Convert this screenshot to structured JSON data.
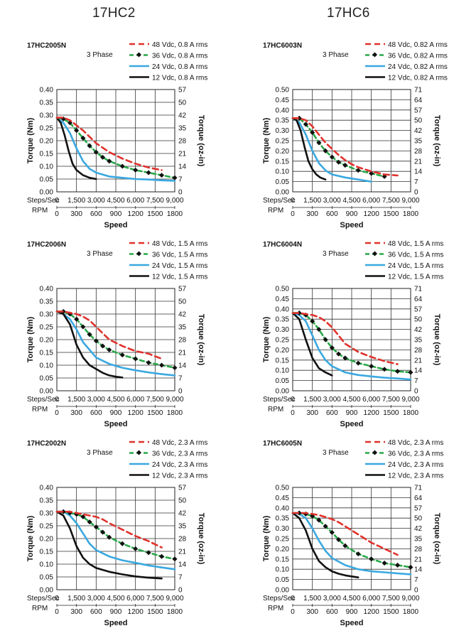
{
  "columns": [
    "17HC2",
    "17HC6"
  ],
  "common": {
    "phase_label": "3 Phase",
    "y_left_label": "Torque (Nm)",
    "y_right_label": "Torque (oz-in)",
    "x_label": "Speed",
    "steps_label": "Steps/Sec",
    "rpm_label": "RPM",
    "x_steps_ticks": [
      "0",
      "1,500",
      "3,000",
      "4,500",
      "6,000",
      "7,500",
      "9,000"
    ],
    "x_rpm_ticks": [
      "0",
      "300",
      "600",
      "900",
      "1200",
      "1500",
      "1800"
    ]
  },
  "colors": {
    "48": "#e0322c",
    "36": "#2aa84a",
    "24": "#3aa8e0",
    "12": "#111111",
    "marker": "#111111"
  },
  "chart_data": [
    {
      "type": "line",
      "title": "17HC2005N",
      "column": 0,
      "row": 0,
      "ylim": [
        0,
        0.4
      ],
      "y_ticks": [
        "0.00",
        "0.05",
        "0.10",
        "0.15",
        "0.20",
        "0.25",
        "0.30",
        "0.35",
        "0.40"
      ],
      "y_right_ticks": [
        "0",
        "7",
        "14",
        "21",
        "28",
        "35",
        "42",
        "50",
        "57"
      ],
      "xlim": [
        0,
        9000
      ],
      "series": [
        {
          "name": "48 Vdc, 0.8 A rms",
          "voltage": "48",
          "x": [
            0,
            500,
            1000,
            1500,
            2000,
            2500,
            3000,
            4000,
            5000,
            6000,
            7000,
            8000
          ],
          "y": [
            0.29,
            0.29,
            0.28,
            0.26,
            0.24,
            0.215,
            0.19,
            0.155,
            0.13,
            0.11,
            0.095,
            0.085
          ]
        },
        {
          "name": "36 Vdc, 0.8 A rms",
          "voltage": "36",
          "x": [
            0,
            500,
            1000,
            1500,
            2000,
            2500,
            3000,
            3500,
            4000,
            5000,
            6000,
            7000,
            8000,
            9000
          ],
          "y": [
            0.29,
            0.285,
            0.27,
            0.24,
            0.21,
            0.18,
            0.155,
            0.135,
            0.12,
            0.1,
            0.085,
            0.075,
            0.065,
            0.055
          ]
        },
        {
          "name": "24 Vdc, 0.8 A rms",
          "voltage": "24",
          "x": [
            0,
            500,
            1000,
            1500,
            2000,
            2500,
            3000,
            4000,
            5000,
            6000,
            7000,
            8000,
            9000
          ],
          "y": [
            0.29,
            0.27,
            0.23,
            0.17,
            0.12,
            0.09,
            0.075,
            0.06,
            0.055,
            0.05,
            0.048,
            0.045,
            0.043
          ]
        },
        {
          "name": "12 Vdc, 0.8 A rms",
          "voltage": "12",
          "x": [
            0,
            300,
            600,
            900,
            1200,
            1500,
            2000,
            2500,
            3000
          ],
          "y": [
            0.29,
            0.27,
            0.22,
            0.16,
            0.11,
            0.085,
            0.065,
            0.055,
            0.05
          ]
        }
      ]
    },
    {
      "type": "line",
      "title": "17HC6003N",
      "column": 1,
      "row": 0,
      "ylim": [
        0,
        0.5
      ],
      "y_ticks": [
        "0.00",
        "0.05",
        "0.10",
        "0.15",
        "0.20",
        "0.25",
        "0.30",
        "0.35",
        "0.40",
        "0.45",
        "0.50"
      ],
      "y_right_ticks": [
        "0",
        "7",
        "14",
        "21",
        "28",
        "35",
        "42",
        "50",
        "57",
        "64",
        "71"
      ],
      "xlim": [
        0,
        9000
      ],
      "series": [
        {
          "name": "48 Vdc, 0.82 A rms",
          "voltage": "48",
          "x": [
            0,
            500,
            1000,
            1500,
            2000,
            2500,
            3000,
            3500,
            4000,
            4500,
            5000,
            6000,
            7000,
            8000
          ],
          "y": [
            0.36,
            0.36,
            0.35,
            0.32,
            0.28,
            0.24,
            0.21,
            0.18,
            0.155,
            0.135,
            0.12,
            0.1,
            0.085,
            0.08
          ]
        },
        {
          "name": "36 Vdc, 0.82 A rms",
          "voltage": "36",
          "x": [
            0,
            500,
            1000,
            1500,
            2000,
            2500,
            3000,
            3500,
            4000,
            5000,
            6000,
            7000
          ],
          "y": [
            0.36,
            0.36,
            0.33,
            0.29,
            0.24,
            0.2,
            0.17,
            0.145,
            0.13,
            0.105,
            0.09,
            0.075
          ]
        },
        {
          "name": "24 Vdc, 0.82 A rms",
          "voltage": "24",
          "x": [
            0,
            500,
            1000,
            1500,
            2000,
            2500,
            3000,
            4000,
            5000,
            6000
          ],
          "y": [
            0.36,
            0.34,
            0.28,
            0.2,
            0.14,
            0.105,
            0.085,
            0.07,
            0.06,
            0.05
          ]
        },
        {
          "name": "12 Vdc, 0.82 A rms",
          "voltage": "12",
          "x": [
            0,
            300,
            600,
            900,
            1200,
            1500,
            1800,
            2100,
            2500
          ],
          "y": [
            0.36,
            0.35,
            0.3,
            0.22,
            0.15,
            0.11,
            0.085,
            0.07,
            0.06
          ]
        }
      ]
    },
    {
      "type": "line",
      "title": "17HC2006N",
      "column": 0,
      "row": 1,
      "ylim": [
        0,
        0.4
      ],
      "y_ticks": [
        "0.00",
        "0.05",
        "0.10",
        "0.15",
        "0.20",
        "0.25",
        "0.30",
        "0.35",
        "0.40"
      ],
      "y_right_ticks": [
        "0",
        "7",
        "14",
        "21",
        "28",
        "35",
        "42",
        "50",
        "57"
      ],
      "xlim": [
        0,
        9000
      ],
      "series": [
        {
          "name": "48 Vdc, 1.5 A rms",
          "voltage": "48",
          "x": [
            0,
            500,
            1000,
            1500,
            2000,
            2500,
            3000,
            3500,
            4000,
            5000,
            6000,
            7000,
            8000
          ],
          "y": [
            0.31,
            0.31,
            0.305,
            0.3,
            0.29,
            0.275,
            0.25,
            0.225,
            0.2,
            0.175,
            0.155,
            0.145,
            0.125
          ]
        },
        {
          "name": "36 Vdc, 1.5 A rms",
          "voltage": "36",
          "x": [
            0,
            500,
            1000,
            1500,
            2000,
            2500,
            3000,
            3500,
            4000,
            5000,
            6000,
            7000,
            8000,
            9000
          ],
          "y": [
            0.31,
            0.31,
            0.3,
            0.28,
            0.25,
            0.22,
            0.195,
            0.175,
            0.16,
            0.14,
            0.125,
            0.11,
            0.1,
            0.09
          ]
        },
        {
          "name": "24 Vdc, 1.5 A rms",
          "voltage": "24",
          "x": [
            0,
            500,
            1000,
            1500,
            2000,
            2500,
            3000,
            4000,
            5000,
            6000,
            7000,
            8000,
            9000
          ],
          "y": [
            0.31,
            0.3,
            0.28,
            0.24,
            0.19,
            0.16,
            0.13,
            0.105,
            0.09,
            0.08,
            0.072,
            0.065,
            0.06
          ]
        },
        {
          "name": "12 Vdc, 1.5 A rms",
          "voltage": "12",
          "x": [
            0,
            500,
            1000,
            1500,
            2000,
            2500,
            3000,
            3500,
            4000,
            4500,
            5000
          ],
          "y": [
            0.31,
            0.3,
            0.26,
            0.18,
            0.13,
            0.1,
            0.085,
            0.07,
            0.06,
            0.055,
            0.052
          ]
        }
      ]
    },
    {
      "type": "line",
      "title": "17HC6004N",
      "column": 1,
      "row": 1,
      "ylim": [
        0,
        0.5
      ],
      "y_ticks": [
        "0.00",
        "0.05",
        "0.10",
        "0.15",
        "0.20",
        "0.25",
        "0.30",
        "0.35",
        "0.40",
        "0.45",
        "0.50"
      ],
      "y_right_ticks": [
        "0",
        "7",
        "14",
        "21",
        "28",
        "35",
        "42",
        "50",
        "57",
        "64",
        "71"
      ],
      "xlim": [
        0,
        9000
      ],
      "series": [
        {
          "name": "48 Vdc, 1.5 A rms",
          "voltage": "48",
          "x": [
            0,
            500,
            1000,
            1500,
            2000,
            2500,
            3000,
            3500,
            4000,
            5000,
            6000,
            7000,
            8000
          ],
          "y": [
            0.38,
            0.38,
            0.375,
            0.37,
            0.36,
            0.34,
            0.31,
            0.27,
            0.23,
            0.19,
            0.165,
            0.145,
            0.13
          ]
        },
        {
          "name": "36 Vdc, 1.5 A rms",
          "voltage": "36",
          "x": [
            0,
            500,
            1000,
            1500,
            2000,
            2500,
            3000,
            3500,
            4000,
            5000,
            6000,
            7000,
            8000,
            9000
          ],
          "y": [
            0.38,
            0.38,
            0.37,
            0.34,
            0.3,
            0.25,
            0.21,
            0.18,
            0.16,
            0.135,
            0.12,
            0.105,
            0.095,
            0.09
          ]
        },
        {
          "name": "24 Vdc, 1.5 A rms",
          "voltage": "24",
          "x": [
            0,
            500,
            1000,
            1500,
            2000,
            2500,
            3000,
            4000,
            5000,
            6000,
            7000,
            8000,
            9000
          ],
          "y": [
            0.38,
            0.37,
            0.34,
            0.27,
            0.2,
            0.15,
            0.12,
            0.09,
            0.077,
            0.07,
            0.064,
            0.06,
            0.055
          ]
        },
        {
          "name": "12 Vdc, 1.5 A rms",
          "voltage": "12",
          "x": [
            0,
            500,
            1000,
            1500,
            2000,
            2500,
            3000
          ],
          "y": [
            0.38,
            0.35,
            0.25,
            0.16,
            0.11,
            0.09,
            0.075
          ]
        }
      ]
    },
    {
      "type": "line",
      "title": "17HC2002N",
      "column": 0,
      "row": 2,
      "ylim": [
        0,
        0.4
      ],
      "y_ticks": [
        "0.00",
        "0.05",
        "0.10",
        "0.15",
        "0.20",
        "0.25",
        "0.30",
        "0.35",
        "0.40"
      ],
      "y_right_ticks": [
        "0",
        "7",
        "14",
        "21",
        "28",
        "35",
        "42",
        "50",
        "57"
      ],
      "xlim": [
        0,
        9000
      ],
      "series": [
        {
          "name": "48 Vdc, 2.3 A rms",
          "voltage": "48",
          "x": [
            0,
            500,
            1000,
            1500,
            2000,
            2500,
            3000,
            3500,
            4000,
            5000,
            6000,
            7000,
            8000
          ],
          "y": [
            0.305,
            0.305,
            0.305,
            0.3,
            0.295,
            0.29,
            0.285,
            0.275,
            0.26,
            0.235,
            0.21,
            0.19,
            0.165
          ]
        },
        {
          "name": "36 Vdc, 2.3 A rms",
          "voltage": "36",
          "x": [
            0,
            500,
            1000,
            1500,
            2000,
            2500,
            3000,
            3500,
            4000,
            5000,
            6000,
            7000,
            8000,
            9000
          ],
          "y": [
            0.305,
            0.305,
            0.3,
            0.295,
            0.285,
            0.265,
            0.245,
            0.225,
            0.205,
            0.18,
            0.16,
            0.145,
            0.13,
            0.12
          ]
        },
        {
          "name": "24 Vdc, 2.3 A rms",
          "voltage": "24",
          "x": [
            0,
            500,
            1000,
            1500,
            2000,
            2500,
            3000,
            4000,
            5000,
            6000,
            7000,
            8000,
            9000
          ],
          "y": [
            0.305,
            0.305,
            0.29,
            0.26,
            0.22,
            0.18,
            0.155,
            0.13,
            0.115,
            0.105,
            0.095,
            0.087,
            0.08
          ]
        },
        {
          "name": "12 Vdc, 2.3 A rms",
          "voltage": "12",
          "x": [
            0,
            500,
            1000,
            1500,
            2000,
            2500,
            3000,
            4000,
            5000,
            6000,
            7000,
            8000
          ],
          "y": [
            0.305,
            0.29,
            0.24,
            0.17,
            0.125,
            0.1,
            0.085,
            0.07,
            0.06,
            0.052,
            0.047,
            0.044
          ]
        }
      ]
    },
    {
      "type": "line",
      "title": "17HC6005N",
      "column": 1,
      "row": 2,
      "ylim": [
        0,
        0.5
      ],
      "y_ticks": [
        "0.00",
        "0.05",
        "0.10",
        "0.15",
        "0.20",
        "0.25",
        "0.30",
        "0.35",
        "0.40",
        "0.45",
        "0.50"
      ],
      "y_right_ticks": [
        "0",
        "7",
        "14",
        "21",
        "28",
        "35",
        "42",
        "50",
        "57",
        "64",
        "71"
      ],
      "xlim": [
        0,
        9000
      ],
      "series": [
        {
          "name": "48 Vdc, 2.3 A rms",
          "voltage": "48",
          "x": [
            0,
            500,
            1000,
            1500,
            2000,
            2500,
            3000,
            3500,
            4000,
            5000,
            6000,
            7000,
            8000
          ],
          "y": [
            0.375,
            0.375,
            0.375,
            0.37,
            0.365,
            0.355,
            0.345,
            0.33,
            0.31,
            0.27,
            0.23,
            0.2,
            0.17
          ]
        },
        {
          "name": "36 Vdc, 2.3 A rms",
          "voltage": "36",
          "x": [
            0,
            500,
            1000,
            1500,
            2000,
            2500,
            3000,
            3500,
            4000,
            5000,
            6000,
            7000,
            8000,
            9000
          ],
          "y": [
            0.375,
            0.375,
            0.37,
            0.36,
            0.34,
            0.31,
            0.28,
            0.245,
            0.215,
            0.175,
            0.15,
            0.13,
            0.12,
            0.11
          ]
        },
        {
          "name": "24 Vdc, 2.3 A rms",
          "voltage": "24",
          "x": [
            0,
            500,
            1000,
            1500,
            2000,
            2500,
            3000,
            4000,
            5000,
            6000,
            7000,
            8000,
            9000
          ],
          "y": [
            0.375,
            0.37,
            0.35,
            0.3,
            0.24,
            0.19,
            0.155,
            0.12,
            0.1,
            0.09,
            0.085,
            0.08,
            0.075
          ]
        },
        {
          "name": "12 Vdc, 2.3 A rms",
          "voltage": "12",
          "x": [
            0,
            500,
            1000,
            1500,
            2000,
            2500,
            3000,
            3500,
            4000,
            4500,
            5000
          ],
          "y": [
            0.375,
            0.35,
            0.29,
            0.2,
            0.14,
            0.11,
            0.09,
            0.078,
            0.07,
            0.065,
            0.06
          ]
        }
      ]
    }
  ]
}
